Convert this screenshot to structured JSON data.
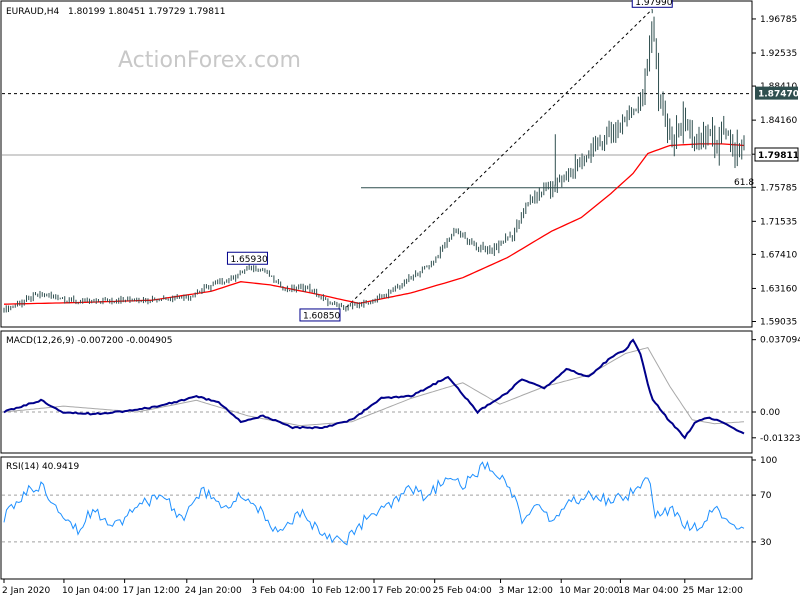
{
  "header": {
    "symbol": "EURAUD,H4",
    "ohlc": "1.80199 1.80451 1.79729 1.79811"
  },
  "watermark": "ActionForex.com",
  "chart_data": {
    "type": "candlestick",
    "price_axis": {
      "range": [
        1.586,
        1.9865
      ],
      "ticks": [
        "1.96785",
        "1.92535",
        "1.88410",
        "1.84160",
        "1.79910",
        "1.75785",
        "1.71535",
        "1.67410",
        "1.63160",
        "1.59035"
      ]
    },
    "current_price": "1.79811",
    "levels": {
      "resistance": "1.87470",
      "fib_61_8": {
        "label": "61.8",
        "value": 1.7572
      }
    },
    "annotations": [
      {
        "label": "1.65930",
        "x": 0.329,
        "value": 1.6593
      },
      {
        "label": "1.60850",
        "x": 0.427,
        "value": 1.6085
      },
      {
        "label": "1.97990",
        "x": 0.876,
        "value": 1.9799
      }
    ],
    "trendline": {
      "from": {
        "x": 0.463,
        "value": 1.6085
      },
      "to": {
        "x": 0.876,
        "value": 1.9799
      }
    },
    "price_series": {
      "x": [
        0,
        0.05,
        0.1,
        0.15,
        0.2,
        0.25,
        0.28,
        0.31,
        0.33,
        0.35,
        0.38,
        0.41,
        0.44,
        0.46,
        0.49,
        0.52,
        0.55,
        0.58,
        0.61,
        0.63,
        0.66,
        0.69,
        0.71,
        0.73,
        0.745,
        0.76,
        0.79,
        0.81,
        0.83,
        0.85,
        0.865,
        0.876,
        0.885,
        0.9,
        0.92,
        0.94,
        0.95,
        0.96,
        0.975,
        1
      ],
      "values": [
        1.605,
        1.625,
        1.615,
        1.617,
        1.618,
        1.622,
        1.635,
        1.645,
        1.657,
        1.655,
        1.63,
        1.633,
        1.612,
        1.608,
        1.613,
        1.626,
        1.645,
        1.665,
        1.706,
        1.687,
        1.678,
        1.703,
        1.742,
        1.755,
        1.76,
        1.77,
        1.8,
        1.82,
        1.835,
        1.855,
        1.88,
        1.975,
        1.86,
        1.82,
        1.84,
        1.802,
        1.835,
        1.812,
        1.818,
        1.798
      ]
    },
    "ma_series": {
      "x": [
        0,
        0.1,
        0.2,
        0.28,
        0.32,
        0.36,
        0.42,
        0.48,
        0.55,
        0.62,
        0.68,
        0.74,
        0.78,
        0.82,
        0.85,
        0.87,
        0.9,
        0.94,
        0.97,
        1
      ],
      "values": [
        1.612,
        1.614,
        1.617,
        1.628,
        1.64,
        1.636,
        1.625,
        1.613,
        1.626,
        1.645,
        1.67,
        1.703,
        1.72,
        1.75,
        1.775,
        1.8,
        1.81,
        1.812,
        1.812,
        1.81
      ]
    },
    "macd": {
      "label": "MACD(12,26,9) -0.007200 -0.004905",
      "range": [
        -0.02,
        0.04
      ],
      "ticks": [
        "0.037094",
        "0.00",
        "-0.013231"
      ],
      "x": [
        0,
        0.05,
        0.08,
        0.12,
        0.18,
        0.22,
        0.26,
        0.29,
        0.32,
        0.35,
        0.39,
        0.43,
        0.47,
        0.51,
        0.55,
        0.6,
        0.64,
        0.68,
        0.7,
        0.73,
        0.76,
        0.79,
        0.82,
        0.84,
        0.85,
        0.86,
        0.875,
        0.9,
        0.92,
        0.935,
        0.95,
        0.97,
        1
      ],
      "values": [
        0.0,
        0.006,
        0.0,
        -0.001,
        0.001,
        0.004,
        0.008,
        0.005,
        -0.005,
        -0.002,
        -0.008,
        -0.008,
        -0.004,
        0.007,
        0.008,
        0.018,
        0.0,
        0.01,
        0.017,
        0.012,
        0.022,
        0.018,
        0.028,
        0.032,
        0.037,
        0.03,
        0.007,
        -0.005,
        -0.013,
        -0.005,
        -0.003,
        -0.005,
        -0.011
      ]
    },
    "macd_signal": {
      "x": [
        0,
        0.08,
        0.18,
        0.26,
        0.33,
        0.4,
        0.47,
        0.55,
        0.62,
        0.67,
        0.73,
        0.79,
        0.84,
        0.87,
        0.9,
        0.93,
        0.96,
        1
      ],
      "values": [
        0.0,
        0.003,
        0.0,
        0.006,
        -0.002,
        -0.007,
        -0.005,
        0.007,
        0.015,
        0.004,
        0.013,
        0.019,
        0.03,
        0.033,
        0.013,
        -0.004,
        -0.006,
        -0.005
      ]
    },
    "rsi": {
      "label": "RSI(14) 40.9419",
      "range": [
        0,
        100
      ],
      "ticks": [
        "100",
        "70",
        "30"
      ],
      "x": [
        0,
        0.03,
        0.05,
        0.08,
        0.1,
        0.12,
        0.15,
        0.18,
        0.21,
        0.24,
        0.27,
        0.3,
        0.32,
        0.34,
        0.37,
        0.4,
        0.43,
        0.46,
        0.49,
        0.52,
        0.55,
        0.57,
        0.6,
        0.62,
        0.65,
        0.68,
        0.7,
        0.72,
        0.74,
        0.76,
        0.79,
        0.82,
        0.85,
        0.87,
        0.88,
        0.9,
        0.92,
        0.94,
        0.96,
        0.98,
        1
      ],
      "values": [
        50,
        73,
        78,
        55,
        40,
        58,
        45,
        58,
        72,
        50,
        74,
        58,
        70,
        62,
        35,
        55,
        38,
        30,
        50,
        60,
        75,
        68,
        85,
        78,
        95,
        82,
        50,
        60,
        48,
        62,
        70,
        65,
        72,
        88,
        50,
        58,
        45,
        40,
        58,
        48,
        42
      ]
    },
    "time_axis": {
      "labels": [
        "2 Jan 2020",
        "10 Jan 04:00",
        "17 Jan 12:00",
        "24 Jan 20:00",
        "3 Feb 04:00",
        "10 Feb 12:00",
        "17 Feb 20:00",
        "25 Feb 04:00",
        "3 Mar 12:00",
        "10 Mar 20:00",
        "18 Mar 04:00",
        "25 Mar 12:00"
      ],
      "positions": [
        0,
        0.081,
        0.163,
        0.247,
        0.337,
        0.418,
        0.5,
        0.582,
        0.671,
        0.753,
        0.833,
        0.92
      ]
    },
    "colors": {
      "candles": "#2f4f4f",
      "ma": "#ff0000",
      "macd": "#00008b",
      "macd_signal": "#a9a9a9",
      "rsi": "#1e90ff",
      "annotation_border": "#00008b"
    }
  }
}
